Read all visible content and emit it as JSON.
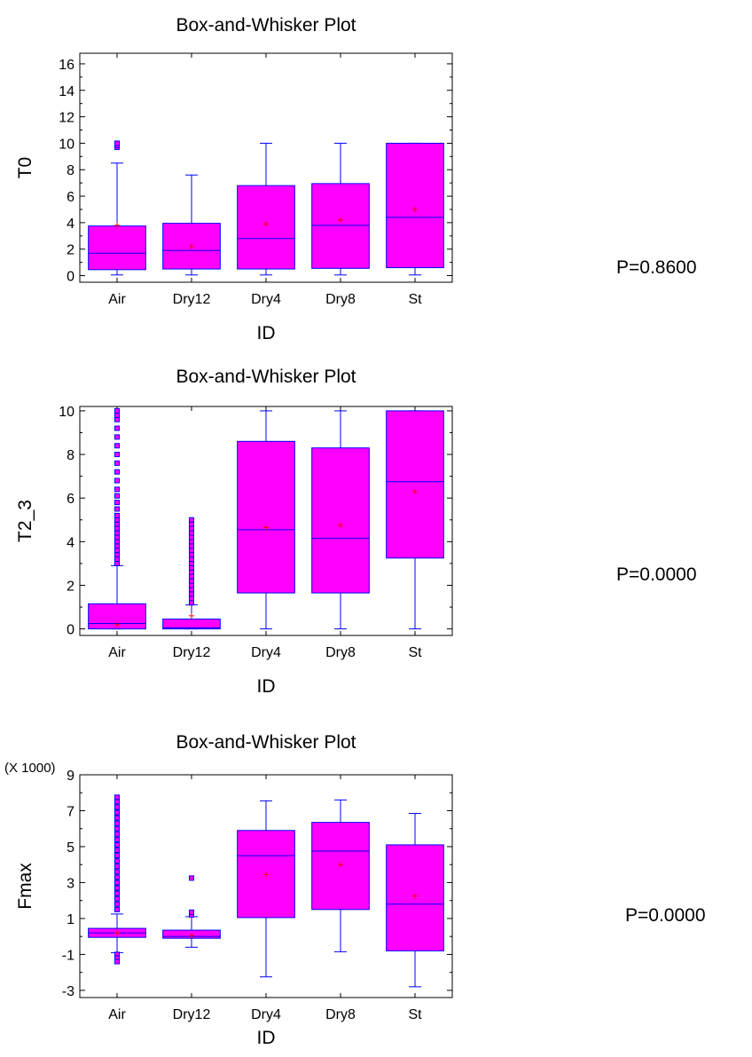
{
  "colors": {
    "box_fill": "#ff00ff",
    "box_stroke": "#0000ff",
    "mean_marker": "#ff0000",
    "outlier": "#0000ff"
  },
  "chart_data": [
    {
      "type": "box",
      "title": "Box-and-Whisker Plot",
      "xlabel": "ID",
      "ylabel": "T0",
      "yscale_label": "",
      "categories": [
        "Air",
        "Dry12",
        "Dry4",
        "Dry8",
        "St"
      ],
      "ylim": [
        -0.5,
        16.8
      ],
      "yticks": [
        0,
        2,
        4,
        6,
        8,
        10,
        12,
        14,
        16
      ],
      "grid": false,
      "boxes": [
        {
          "min": 0.05,
          "q1": 0.45,
          "median": 1.7,
          "q3": 3.75,
          "max": 8.5,
          "mean": 3.8,
          "outliers": [
            9.7,
            9.85,
            10.0
          ]
        },
        {
          "min": 0.05,
          "q1": 0.5,
          "median": 1.9,
          "q3": 3.95,
          "max": 7.6,
          "mean": 2.2,
          "outliers": []
        },
        {
          "min": 0.05,
          "q1": 0.5,
          "median": 2.8,
          "q3": 6.8,
          "max": 10.0,
          "mean": 3.9,
          "outliers": []
        },
        {
          "min": 0.05,
          "q1": 0.55,
          "median": 3.8,
          "q3": 6.95,
          "max": 10.0,
          "mean": 4.2,
          "outliers": []
        },
        {
          "min": 0.05,
          "q1": 0.6,
          "median": 4.4,
          "q3": 10.0,
          "max": 10.0,
          "mean": 5.0,
          "outliers": []
        }
      ],
      "p_value": "P=0.8600"
    },
    {
      "type": "box",
      "title": "Box-and-Whisker Plot",
      "xlabel": "ID",
      "ylabel": "T2_3",
      "yscale_label": "",
      "categories": [
        "Air",
        "Dry12",
        "Dry4",
        "Dry8",
        "St"
      ],
      "ylim": [
        -0.3,
        10.2
      ],
      "yticks": [
        0,
        2,
        4,
        6,
        8,
        10
      ],
      "grid": false,
      "boxes": [
        {
          "min": 0.0,
          "q1": 0.0,
          "median": 0.25,
          "q3": 1.15,
          "max": 2.9,
          "mean": 0.2,
          "outliers": [
            3.0,
            3.2,
            3.4,
            3.6,
            3.8,
            4.0,
            4.2,
            4.4,
            4.6,
            4.8,
            5.0,
            5.2,
            5.5,
            5.8,
            6.1,
            6.4,
            6.8,
            7.2,
            7.6,
            8.0,
            8.4,
            8.8,
            9.2,
            9.6,
            9.8,
            10.0
          ]
        },
        {
          "min": 0.0,
          "q1": 0.0,
          "median": 0.05,
          "q3": 0.45,
          "max": 1.1,
          "mean": 0.6,
          "outliers": [
            1.2,
            1.4,
            1.6,
            1.8,
            2.0,
            2.2,
            2.4,
            2.6,
            2.8,
            3.0,
            3.2,
            3.4,
            3.6,
            3.8,
            4.0,
            4.2,
            4.4,
            4.6,
            4.8,
            5.0
          ]
        },
        {
          "min": 0.0,
          "q1": 1.65,
          "median": 4.55,
          "q3": 8.6,
          "max": 10.0,
          "mean": 4.65,
          "outliers": []
        },
        {
          "min": 0.0,
          "q1": 1.65,
          "median": 4.15,
          "q3": 8.3,
          "max": 10.0,
          "mean": 4.75,
          "outliers": []
        },
        {
          "min": 0.0,
          "q1": 3.25,
          "median": 6.75,
          "q3": 10.0,
          "max": 10.0,
          "mean": 6.3,
          "outliers": []
        }
      ],
      "p_value": "P=0.0000"
    },
    {
      "type": "box",
      "title": "Box-and-Whisker Plot",
      "xlabel": "ID",
      "ylabel": "Fmax",
      "yscale_label": "(X 1000)",
      "categories": [
        "Air",
        "Dry12",
        "Dry4",
        "Dry8",
        "St"
      ],
      "ylim": [
        -3.4,
        9.0
      ],
      "yticks": [
        -3,
        -1,
        1,
        3,
        5,
        7,
        9
      ],
      "grid": false,
      "boxes": [
        {
          "min": -0.9,
          "q1": -0.05,
          "median": 0.2,
          "q3": 0.45,
          "max": 1.25,
          "mean": 0.2,
          "outliers": [
            -1.0,
            -1.2,
            -1.4,
            1.5,
            1.8,
            2.1,
            2.4,
            2.7,
            3.0,
            3.3,
            3.6,
            3.9,
            4.2,
            4.5,
            4.8,
            5.1,
            5.4,
            5.7,
            6.0,
            6.3,
            6.6,
            6.9,
            7.2,
            7.5,
            7.75
          ]
        },
        {
          "min": -0.6,
          "q1": -0.1,
          "median": 0.0,
          "q3": 0.35,
          "max": 1.1,
          "mean": 0.05,
          "outliers": [
            1.2,
            1.35,
            3.25
          ]
        },
        {
          "min": -2.25,
          "q1": 1.05,
          "median": 4.5,
          "q3": 5.9,
          "max": 7.55,
          "mean": 3.45,
          "outliers": []
        },
        {
          "min": -0.85,
          "q1": 1.5,
          "median": 4.75,
          "q3": 6.35,
          "max": 7.6,
          "mean": 4.0,
          "outliers": []
        },
        {
          "min": -2.8,
          "q1": -0.8,
          "median": 1.8,
          "q3": 5.1,
          "max": 6.85,
          "mean": 2.25,
          "outliers": []
        }
      ],
      "p_value": "P=0.0000"
    }
  ]
}
